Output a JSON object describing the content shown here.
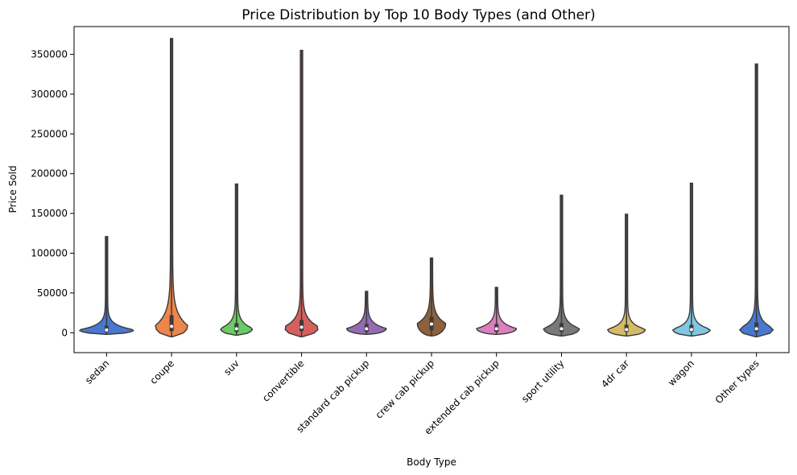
{
  "chart_data": {
    "type": "violin",
    "title": "Price Distribution by Top 10 Body Types (and Other)",
    "xlabel": "Body Type",
    "ylabel": "Price Sold",
    "ylim": [
      -25000,
      385000
    ],
    "yticks": [
      0,
      50000,
      100000,
      150000,
      200000,
      250000,
      300000,
      350000
    ],
    "grid": false,
    "legend": "none",
    "categories": [
      "sedan",
      "coupe",
      "suv",
      "convertible",
      "standard cab pickup",
      "crew cab pickup",
      "extended cab pickup",
      "sport utility",
      "4dr car",
      "wagon",
      "Other types"
    ],
    "colors": [
      "#4878d0",
      "#ee854a",
      "#6acc64",
      "#d65f5f",
      "#956cb4",
      "#8c613c",
      "#dc7ec0",
      "#797979",
      "#d5bb67",
      "#82c6e2",
      "#4878d0"
    ],
    "series": [
      {
        "category": "sedan",
        "min": -2000,
        "max": 121000,
        "q1": 1000,
        "median": 3500,
        "q3": 9000,
        "spread": 0.58
      },
      {
        "category": "coupe",
        "min": -5000,
        "max": 370000,
        "q1": 2000,
        "median": 8000,
        "q3": 22000,
        "spread": 0.34
      },
      {
        "category": "suv",
        "min": -3000,
        "max": 187000,
        "q1": 1000,
        "median": 5000,
        "q3": 12000,
        "spread": 0.34
      },
      {
        "category": "convertible",
        "min": -5000,
        "max": 355000,
        "q1": 2000,
        "median": 7000,
        "q3": 16000,
        "spread": 0.36
      },
      {
        "category": "standard cab pickup",
        "min": -2000,
        "max": 52000,
        "q1": 1000,
        "median": 5000,
        "q3": 11000,
        "spread": 0.42
      },
      {
        "category": "crew cab pickup",
        "min": -4000,
        "max": 94000,
        "q1": 3000,
        "median": 11000,
        "q3": 20000,
        "spread": 0.3
      },
      {
        "category": "extended cab pickup",
        "min": -2000,
        "max": 57000,
        "q1": 1000,
        "median": 5000,
        "q3": 11000,
        "spread": 0.42
      },
      {
        "category": "sport utility",
        "min": -4000,
        "max": 173000,
        "q1": 1000,
        "median": 5000,
        "q3": 12000,
        "spread": 0.38
      },
      {
        "category": "4dr car",
        "min": -4000,
        "max": 149000,
        "q1": 1000,
        "median": 4000,
        "q3": 10000,
        "spread": 0.4
      },
      {
        "category": "wagon",
        "min": -4000,
        "max": 188000,
        "q1": 1000,
        "median": 4000,
        "q3": 10000,
        "spread": 0.4
      },
      {
        "category": "Other types",
        "min": -5000,
        "max": 338000,
        "q1": 1000,
        "median": 5000,
        "q3": 13000,
        "spread": 0.36
      }
    ]
  }
}
